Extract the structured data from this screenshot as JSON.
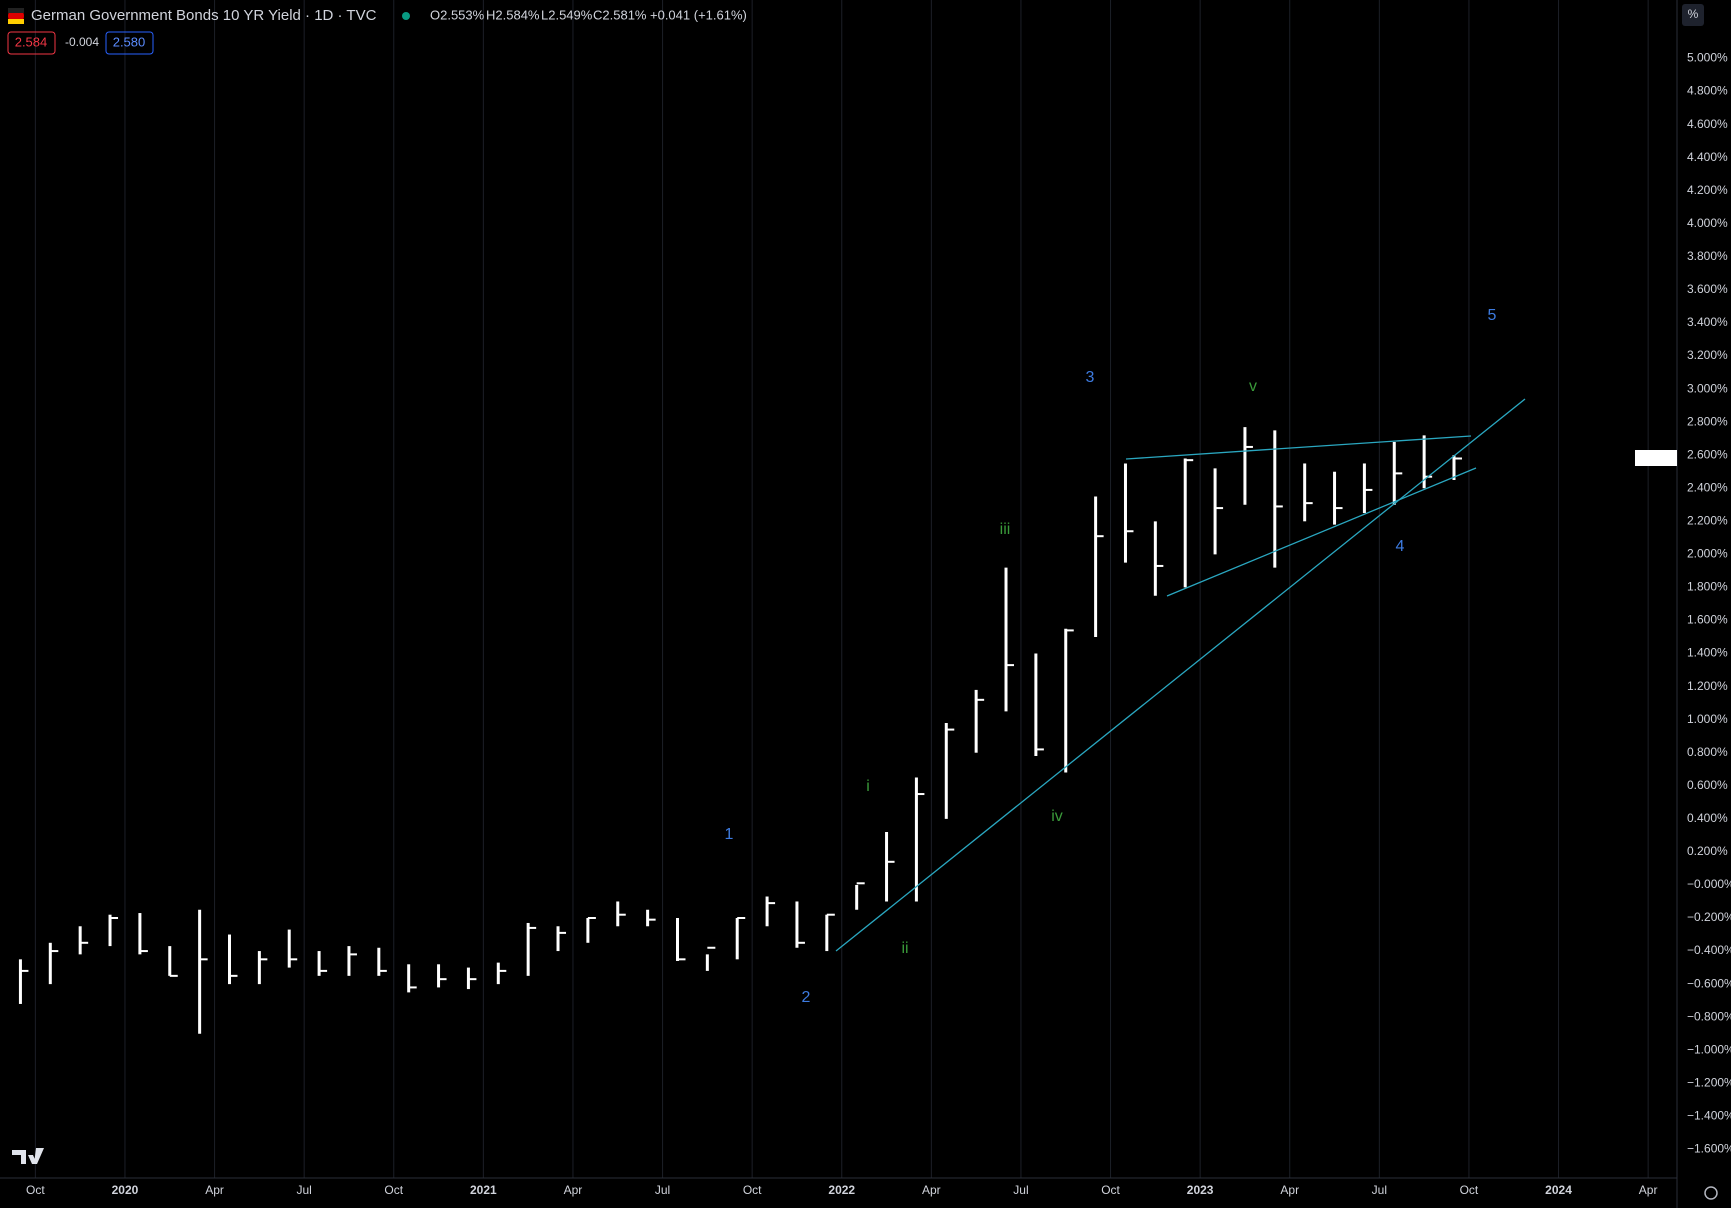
{
  "chart_data": {
    "type": "ohlc",
    "title": "German Government Bonds 10 YR Yield · 1D · TVC",
    "ohlc_readout": [
      "O2.553%",
      "H2.584%",
      "L2.549%",
      "C2.581%",
      "+0.041 (+1.61%)"
    ],
    "bid": "2.584",
    "spread": "-0.004",
    "ask": "2.580",
    "currency": "%",
    "annotations": [
      {
        "text": "1",
        "color": "#3d7be0"
      },
      {
        "text": "2",
        "color": "#3d7be0"
      },
      {
        "text": "3",
        "color": "#3d7be0"
      },
      {
        "text": "4",
        "color": "#3d7be0"
      },
      {
        "text": "5",
        "color": "#3d7be0"
      },
      {
        "text": "i",
        "color": "#3a9a3a"
      },
      {
        "text": "ii",
        "color": "#3a9a3a"
      },
      {
        "text": "iii",
        "color": "#3a9a3a"
      },
      {
        "text": "iv",
        "color": "#3a9a3a"
      },
      {
        "text": "v",
        "color": "#3a9a3a"
      }
    ],
    "x": [
      "2019-09",
      "2019-10",
      "2019-11",
      "2019-12",
      "2020-01",
      "2020-02",
      "2020-03",
      "2020-04",
      "2020-05",
      "2020-06",
      "2020-07",
      "2020-08",
      "2020-09",
      "2020-10",
      "2020-11",
      "2020-12",
      "2021-01",
      "2021-02",
      "2021-03",
      "2021-04",
      "2021-05",
      "2021-06",
      "2021-07",
      "2021-08",
      "2021-09",
      "2021-10",
      "2021-11",
      "2021-12",
      "2022-01",
      "2022-02",
      "2022-03",
      "2022-04",
      "2022-05",
      "2022-06",
      "2022-07",
      "2022-08",
      "2022-09",
      "2022-10",
      "2022-11",
      "2022-12",
      "2023-01",
      "2023-02",
      "2023-03",
      "2023-04",
      "2023-05",
      "2023-06",
      "2023-07",
      "2023-08",
      "2023-09"
    ],
    "high": [
      -0.45,
      -0.35,
      -0.25,
      -0.18,
      -0.17,
      -0.37,
      -0.15,
      -0.3,
      -0.4,
      -0.27,
      -0.4,
      -0.37,
      -0.38,
      -0.48,
      -0.48,
      -0.5,
      -0.47,
      -0.23,
      -0.25,
      -0.2,
      -0.1,
      -0.15,
      -0.2,
      -0.42,
      -0.2,
      -0.07,
      -0.1,
      -0.18,
      0.0,
      0.32,
      0.65,
      0.98,
      1.18,
      1.92,
      1.4,
      1.55,
      2.35,
      2.55,
      2.2,
      2.58,
      2.52,
      2.77,
      2.75,
      2.55,
      2.5,
      2.55,
      2.68,
      2.72,
      2.6
    ],
    "low": [
      -0.72,
      -0.6,
      -0.42,
      -0.37,
      -0.42,
      -0.55,
      -0.9,
      -0.6,
      -0.6,
      -0.5,
      -0.55,
      -0.55,
      -0.55,
      -0.65,
      -0.62,
      -0.63,
      -0.6,
      -0.55,
      -0.4,
      -0.35,
      -0.25,
      -0.25,
      -0.46,
      -0.52,
      -0.45,
      -0.25,
      -0.38,
      -0.4,
      -0.15,
      -0.1,
      -0.1,
      0.4,
      0.8,
      1.05,
      0.78,
      0.68,
      1.5,
      1.95,
      1.75,
      1.8,
      2.0,
      2.3,
      1.92,
      2.2,
      2.18,
      2.25,
      2.3,
      2.4,
      2.45
    ],
    "close": [
      -0.52,
      -0.4,
      -0.35,
      -0.2,
      -0.4,
      -0.55,
      -0.45,
      -0.55,
      -0.45,
      -0.45,
      -0.52,
      -0.42,
      -0.52,
      -0.62,
      -0.57,
      -0.57,
      -0.52,
      -0.26,
      -0.29,
      -0.2,
      -0.18,
      -0.21,
      -0.45,
      -0.38,
      -0.2,
      -0.11,
      -0.35,
      -0.18,
      0.01,
      0.14,
      0.55,
      0.94,
      1.12,
      1.33,
      0.82,
      1.54,
      2.11,
      2.14,
      1.93,
      2.57,
      2.28,
      2.65,
      2.29,
      2.31,
      2.28,
      2.39,
      2.49,
      2.47,
      2.58
    ],
    "color": "#ffffff",
    "xlim": [
      "2019-09",
      "2024-05"
    ],
    "xticks": [
      {
        "value": "2019-10",
        "label": "Oct"
      },
      {
        "value": "2020-01",
        "label": "2020"
      },
      {
        "value": "2020-04",
        "label": "Apr"
      },
      {
        "value": "2020-07",
        "label": "Jul"
      },
      {
        "value": "2020-10",
        "label": "Oct"
      },
      {
        "value": "2021-01",
        "label": "2021"
      },
      {
        "value": "2021-04",
        "label": "Apr"
      },
      {
        "value": "2021-07",
        "label": "Jul"
      },
      {
        "value": "2021-10",
        "label": "Oct"
      },
      {
        "value": "2022-01",
        "label": "2022"
      },
      {
        "value": "2022-04",
        "label": "Apr"
      },
      {
        "value": "2022-07",
        "label": "Jul"
      },
      {
        "value": "2022-10",
        "label": "Oct"
      },
      {
        "value": "2023-01",
        "label": "2023"
      },
      {
        "value": "2023-04",
        "label": "Apr"
      },
      {
        "value": "2023-07",
        "label": "Jul"
      },
      {
        "value": "2023-10",
        "label": "Oct"
      },
      {
        "value": "2024-01",
        "label": "2024"
      },
      {
        "value": "2024-04",
        "label": "Apr"
      }
    ],
    "ylim": [
      -1.773,
      5.354
    ],
    "yticks": [
      {
        "value": 5.0,
        "label": "5.000%"
      },
      {
        "value": 4.8,
        "label": "4.800%"
      },
      {
        "value": 4.6,
        "label": "4.600%"
      },
      {
        "value": 4.4,
        "label": "4.400%"
      },
      {
        "value": 4.2,
        "label": "4.200%"
      },
      {
        "value": 4.0,
        "label": "4.000%"
      },
      {
        "value": 3.8,
        "label": "3.800%"
      },
      {
        "value": 3.6,
        "label": "3.600%"
      },
      {
        "value": 3.4,
        "label": "3.400%"
      },
      {
        "value": 3.2,
        "label": "3.200%"
      },
      {
        "value": 3.0,
        "label": "3.000%"
      },
      {
        "value": 2.8,
        "label": "2.800%"
      },
      {
        "value": 2.6,
        "label": "2.600%"
      },
      {
        "value": 2.4,
        "label": "2.400%"
      },
      {
        "value": 2.2,
        "label": "2.200%"
      },
      {
        "value": 2.0,
        "label": "2.000%"
      },
      {
        "value": 1.8,
        "label": "1.800%"
      },
      {
        "value": 1.6,
        "label": "1.600%"
      },
      {
        "value": 1.4,
        "label": "1.400%"
      },
      {
        "value": 1.2,
        "label": "1.200%"
      },
      {
        "value": 1.0,
        "label": "1.000%"
      },
      {
        "value": 0.8,
        "label": "0.800%"
      },
      {
        "value": 0.6,
        "label": "0.600%"
      },
      {
        "value": 0.4,
        "label": "0.400%"
      },
      {
        "value": 0.2,
        "label": "0.200%"
      },
      {
        "value": 0,
        "label": "−0.000%"
      },
      {
        "value": -0.2,
        "label": "−0.200%"
      },
      {
        "value": -0.4,
        "label": "−0.400%"
      },
      {
        "value": -0.6,
        "label": "−0.600%"
      },
      {
        "value": -0.8,
        "label": "−0.800%"
      },
      {
        "value": -1.0,
        "label": "−1.000%"
      },
      {
        "value": -1.2,
        "label": "−1.200%"
      },
      {
        "value": -1.4,
        "label": "−1.400%"
      },
      {
        "value": -1.6,
        "label": "−1.600%"
      }
    ],
    "grid": true
  }
}
